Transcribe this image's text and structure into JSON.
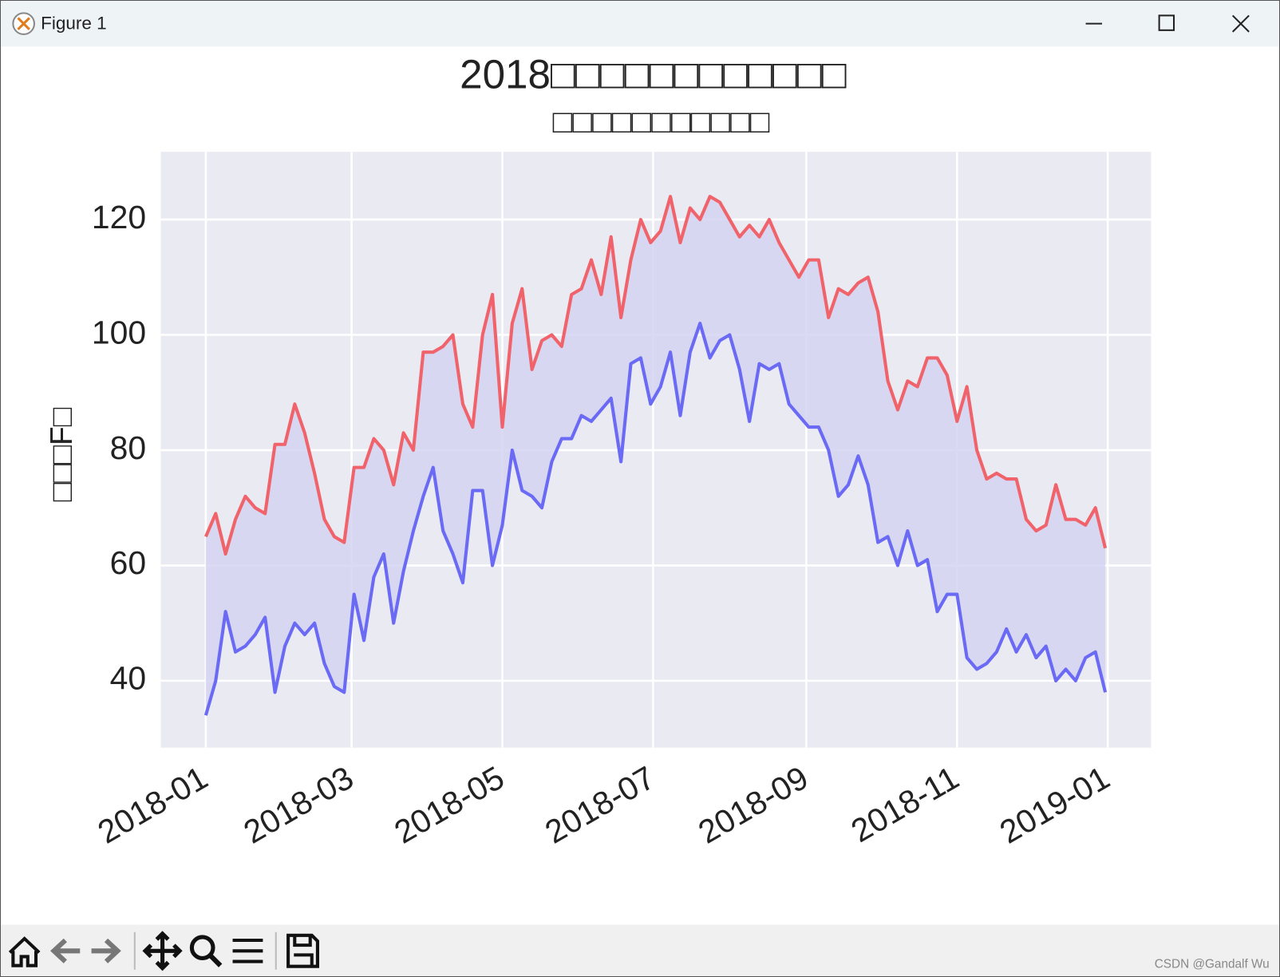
{
  "window": {
    "title": "Figure 1",
    "watermark": "CSDN @Gandalf Wu"
  },
  "chart_data": {
    "type": "line",
    "title": "2018□□□□□□□□□□□□",
    "subtitle": "□□□□□□□□□□□",
    "ylabel": "□□□F□",
    "x": [
      0,
      4,
      8,
      12,
      16,
      20,
      24,
      28,
      32,
      36,
      40,
      44,
      48,
      52,
      56,
      60,
      64,
      68,
      72,
      76,
      80,
      84,
      88,
      92,
      96,
      100,
      104,
      108,
      112,
      116,
      120,
      124,
      128,
      132,
      136,
      140,
      144,
      148,
      152,
      156,
      160,
      164,
      168,
      172,
      176,
      180,
      184,
      188,
      192,
      196,
      200,
      204,
      208,
      212,
      216,
      220,
      224,
      228,
      232,
      236,
      240,
      244,
      248,
      252,
      256,
      260,
      264,
      268,
      272,
      276,
      280,
      284,
      288,
      292,
      296,
      300,
      304,
      308,
      312,
      316,
      320,
      324,
      328,
      332,
      336,
      340,
      344,
      348,
      352,
      356,
      360,
      364
    ],
    "series": [
      {
        "color": "#f0636b",
        "values": [
          65,
          69,
          62,
          68,
          72,
          70,
          69,
          81,
          81,
          88,
          83,
          76,
          68,
          65,
          64,
          77,
          77,
          82,
          80,
          74,
          83,
          80,
          97,
          97,
          98,
          100,
          88,
          84,
          100,
          107,
          84,
          102,
          108,
          94,
          99,
          100,
          98,
          107,
          108,
          113,
          107,
          117,
          103,
          113,
          120,
          116,
          118,
          124,
          116,
          122,
          120,
          124,
          123,
          120,
          117,
          119,
          117,
          120,
          116,
          113,
          110,
          113,
          113,
          103,
          108,
          107,
          109,
          110,
          104,
          92,
          87,
          92,
          91,
          96,
          96,
          93,
          85,
          91,
          80,
          75,
          76,
          75,
          75,
          68,
          66,
          67,
          74,
          68,
          68,
          67,
          70,
          63
        ]
      },
      {
        "color": "#6a6af5",
        "values": [
          34,
          40,
          52,
          45,
          46,
          48,
          51,
          38,
          46,
          50,
          48,
          50,
          43,
          39,
          38,
          55,
          47,
          58,
          62,
          50,
          59,
          66,
          72,
          77,
          66,
          62,
          57,
          73,
          73,
          60,
          67,
          80,
          73,
          72,
          70,
          78,
          82,
          82,
          86,
          85,
          87,
          89,
          78,
          95,
          96,
          88,
          91,
          97,
          86,
          97,
          102,
          96,
          99,
          100,
          94,
          85,
          95,
          94,
          95,
          88,
          86,
          84,
          84,
          80,
          72,
          74,
          79,
          74,
          64,
          65,
          60,
          66,
          60,
          61,
          52,
          55,
          55,
          44,
          42,
          43,
          45,
          49,
          45,
          48,
          44,
          46,
          40,
          42,
          40,
          44,
          45,
          38
        ]
      }
    ],
    "fill_color": "#d4d4f2",
    "xlim": [
      -18.2,
      382.5
    ],
    "xticks": [
      {
        "value": 0,
        "label": "2018-01"
      },
      {
        "value": 59,
        "label": "2018-03"
      },
      {
        "value": 120,
        "label": "2018-05"
      },
      {
        "value": 181,
        "label": "2018-07"
      },
      {
        "value": 243,
        "label": "2018-09"
      },
      {
        "value": 304,
        "label": "2018-11"
      },
      {
        "value": 365,
        "label": "2019-01"
      }
    ],
    "ylim": [
      28.4,
      131.75
    ],
    "yticks": [
      40,
      60,
      80,
      100,
      120
    ],
    "grid": true
  }
}
